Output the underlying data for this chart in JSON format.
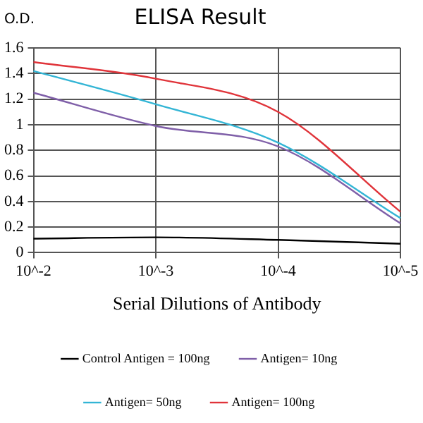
{
  "chart_data": {
    "type": "line",
    "title": "ELISA Result",
    "ylabel": "O.D.",
    "xlabel": "Serial Dilutions of Antibody",
    "categories": [
      "10^-2",
      "10^-3",
      "10^-4",
      "10^-5"
    ],
    "series": [
      {
        "name": "Control Antigen = 100ng",
        "color": "#000000",
        "values": [
          0.11,
          0.12,
          0.1,
          0.07
        ]
      },
      {
        "name": "Antigen= 10ng",
        "color": "#7f5fa8",
        "values": [
          1.25,
          0.99,
          0.83,
          0.23
        ]
      },
      {
        "name": "Antigen= 50ng",
        "color": "#33b5d5",
        "values": [
          1.42,
          1.16,
          0.86,
          0.27
        ]
      },
      {
        "name": "Antigen= 100ng",
        "color": "#e0343a",
        "values": [
          1.49,
          1.36,
          1.1,
          0.32
        ]
      }
    ],
    "ylim": [
      0,
      1.6
    ],
    "yticks": [
      0,
      0.2,
      0.4,
      0.6,
      0.8,
      {
        "value": 1,
        "label": "1"
      },
      1.2,
      1.4,
      1.6
    ],
    "grid": true,
    "legend": "bottom",
    "marker": "none",
    "line_style": "solid"
  }
}
